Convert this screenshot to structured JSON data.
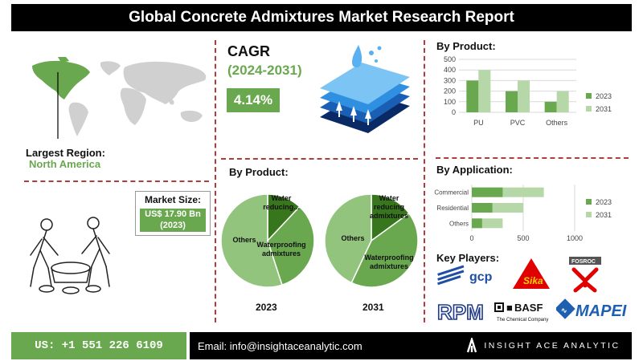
{
  "title": "Global Concrete Admixtures Market Research Report",
  "region": {
    "label": "Largest Region:",
    "value": "North America"
  },
  "market_size": {
    "label": "Market Size:",
    "value_line1": "US$ 17.90 Bn",
    "value_line2": "(2023)"
  },
  "cagr": {
    "label": "CAGR",
    "period": "(2024-2031)",
    "value": "4.14%"
  },
  "colors": {
    "dark_green": "#6aa84f",
    "light_green": "#b6d7a8",
    "footer_black": "#000000",
    "divider": "#b23b3b"
  },
  "pie_section": {
    "title": "By Product:",
    "year_left": "2023",
    "year_right": "2031"
  },
  "bar_product": {
    "title": "By Product:"
  },
  "bar_application": {
    "title": "By Application:"
  },
  "key_players": {
    "title": "Key Players:",
    "logos": [
      "gcp",
      "Sika",
      "FOSROC",
      "RPM",
      "BASF",
      "The Chemical Company",
      "MAPEI"
    ]
  },
  "footer": {
    "phone": "US: +1 551 226 6109",
    "email": "Email: info@insightaceanalytic.com",
    "brand": "INSIGHT ACE ANALYTIC"
  },
  "chart_data": [
    {
      "type": "bar",
      "title": "By Product:",
      "categories": [
        "PU",
        "PVC",
        "Others"
      ],
      "series": [
        {
          "name": "2023",
          "values": [
            300,
            200,
            100
          ]
        },
        {
          "name": "2031",
          "values": [
            400,
            300,
            200
          ]
        }
      ],
      "ylim": [
        0,
        500
      ],
      "yticks": [
        "0",
        "100",
        "200",
        "300",
        "400",
        "500"
      ],
      "grid": true,
      "legend": "right"
    },
    {
      "type": "bar",
      "orientation": "horizontal",
      "title": "By Application:",
      "categories": [
        "Commercial",
        "Residential",
        "Others"
      ],
      "series": [
        {
          "name": "2023",
          "values": [
            300,
            200,
            100
          ]
        },
        {
          "name": "2031",
          "values": [
            700,
            500,
            300
          ]
        }
      ],
      "xlim": [
        0,
        1000
      ],
      "xticks": [
        "0",
        "500",
        "1000"
      ],
      "grid": true,
      "legend": "right"
    },
    {
      "type": "pie",
      "subtitle": "2023",
      "labels": [
        "Water reducing...",
        "Waterproofing admixtures",
        "Others"
      ],
      "values": [
        12,
        33,
        55
      ]
    },
    {
      "type": "pie",
      "subtitle": "2031",
      "labels": [
        "Water reducing admixtures",
        "Waterproofing admixtures",
        "Others"
      ],
      "values": [
        15,
        42,
        43
      ]
    }
  ]
}
